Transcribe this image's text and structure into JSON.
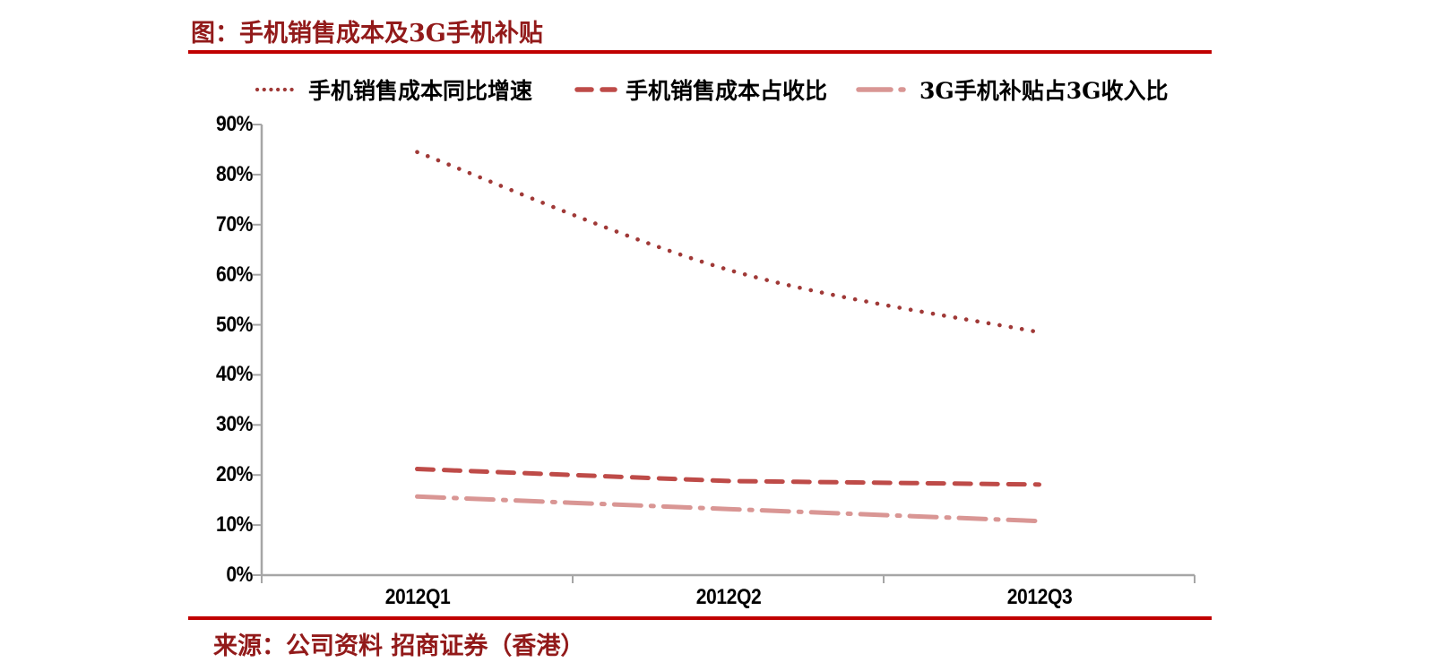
{
  "title": "图：手机销售成本及3G手机补贴",
  "source": "来源：公司资料 招商证券（香港）",
  "colors": {
    "title_red": "#921A1A",
    "rule_red": "#C00000",
    "axis_gray": "#A6A6A6",
    "tick_label": "#000000",
    "series_yoy": "#A03937",
    "series_cost_ratio": "#BE4B48",
    "series_subsidy_ratio": "#D99694"
  },
  "chart_data": {
    "type": "line",
    "title": "图：手机销售成本及3G手机补贴",
    "categories": [
      "2012Q1",
      "2012Q2",
      "2012Q3"
    ],
    "series": [
      {
        "name": "手机销售成本同比增速",
        "values": [
          84.5,
          61.0,
          48.5
        ],
        "color": "#A03937",
        "dash": "dotted",
        "smooth": true
      },
      {
        "name": "手机销售成本占收比",
        "values": [
          21.2,
          18.8,
          18.1
        ],
        "color": "#BE4B48",
        "dash": "dashed",
        "smooth": false
      },
      {
        "name": "3G手机补贴占3G收入比",
        "values": [
          15.7,
          13.2,
          10.8
        ],
        "color": "#D99694",
        "dash": "dashdot",
        "smooth": false
      }
    ],
    "ylim": [
      0,
      90
    ],
    "y_tick_step": 10,
    "y_ticks": [
      "90%",
      "80%",
      "70%",
      "60%",
      "50%",
      "40%",
      "30%",
      "20%",
      "10%",
      "0%"
    ],
    "xlabel": "",
    "ylabel": "",
    "grid": false,
    "legend_position": "top"
  }
}
